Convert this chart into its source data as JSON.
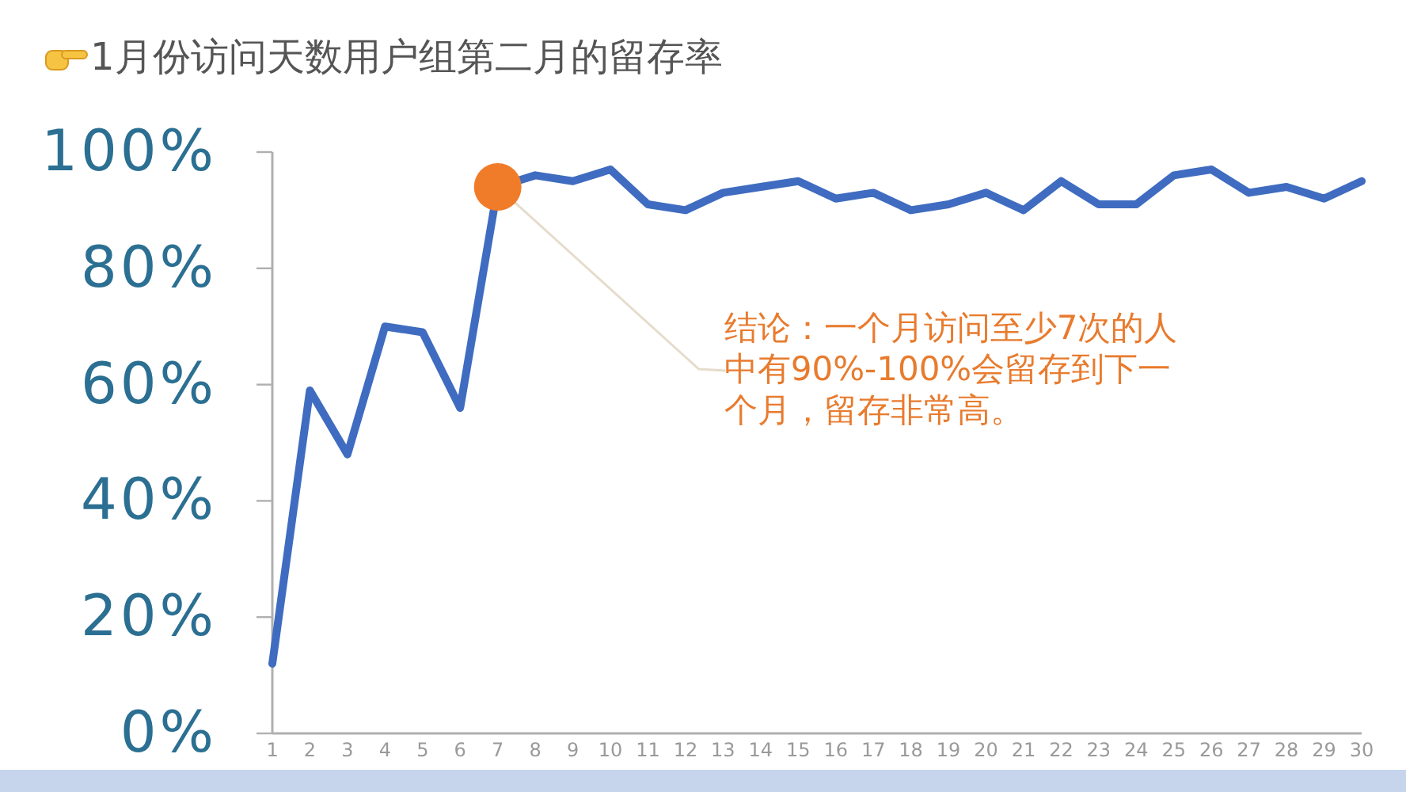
{
  "chart_data": {
    "type": "line",
    "title": "1月份访问天数用户组第二月的留存率",
    "x": [
      1,
      2,
      3,
      4,
      5,
      6,
      7,
      8,
      9,
      10,
      11,
      12,
      13,
      14,
      15,
      16,
      17,
      18,
      19,
      20,
      21,
      22,
      23,
      24,
      25,
      26,
      27,
      28,
      29,
      30
    ],
    "series": [
      {
        "color": "#3f6cc0",
        "values": [
          12,
          59,
          48,
          70,
          69,
          56,
          94,
          96,
          95,
          97,
          91,
          90,
          93,
          94,
          95,
          92,
          93,
          90,
          91,
          93,
          90,
          95,
          91,
          91,
          96,
          97,
          93,
          94,
          92,
          95
        ]
      }
    ],
    "xlim": [
      1,
      30
    ],
    "xticks": [
      1,
      2,
      3,
      4,
      5,
      6,
      7,
      8,
      9,
      10,
      11,
      12,
      13,
      14,
      15,
      16,
      17,
      18,
      19,
      20,
      21,
      22,
      23,
      24,
      25,
      26,
      27,
      28,
      29,
      30
    ],
    "ylim": [
      0,
      100
    ],
    "yticks": [
      {
        "value": 0,
        "label": "0%"
      },
      {
        "value": 20,
        "label": "20%"
      },
      {
        "value": 40,
        "label": "40%"
      },
      {
        "value": 60,
        "label": "60%"
      },
      {
        "value": 80,
        "label": "80%"
      },
      {
        "value": 100,
        "label": "100%"
      }
    ],
    "annotations": [
      {
        "text": "结论：一个月访问至少7次的人中有90%-100%会留存到下一个月，留存非常高。",
        "x": 7,
        "y": 94
      }
    ]
  }
}
